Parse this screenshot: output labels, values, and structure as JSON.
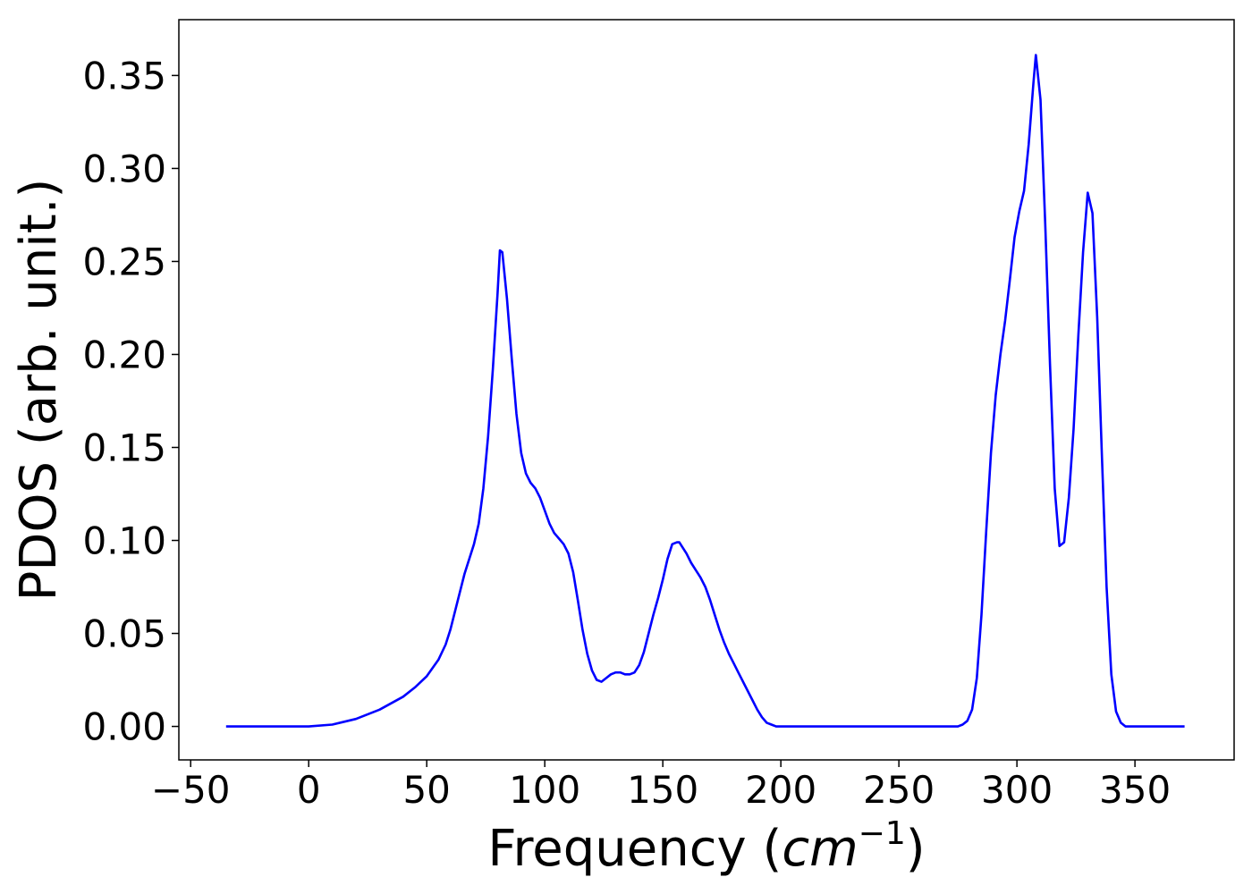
{
  "chart_data": {
    "type": "line",
    "title": "",
    "xlabel_prefix": "Frequency (",
    "xlabel_math": "cm",
    "xlabel_sup": "−1",
    "xlabel_suffix": ")",
    "ylabel": "PDOS (arb. unit.)",
    "xlim": [
      -55,
      392
    ],
    "ylim": [
      -0.018,
      0.38
    ],
    "xticks": [
      -50,
      0,
      50,
      100,
      150,
      200,
      250,
      300,
      350
    ],
    "xtick_labels": [
      "−50",
      "0",
      "50",
      "100",
      "150",
      "200",
      "250",
      "300",
      "350"
    ],
    "yticks": [
      0.0,
      0.05,
      0.1,
      0.15,
      0.2,
      0.25,
      0.3,
      0.35
    ],
    "ytick_labels": [
      "0.00",
      "0.05",
      "0.10",
      "0.15",
      "0.20",
      "0.25",
      "0.30",
      "0.35"
    ],
    "grid": false,
    "line_color": "#0000ff",
    "series": [
      {
        "x": [
          -35,
          -20,
          0,
          10,
          20,
          30,
          40,
          45,
          50,
          55,
          58,
          60,
          63,
          66,
          70,
          72,
          74,
          76,
          78,
          80,
          81,
          82,
          84,
          86,
          88,
          90,
          92,
          94,
          96,
          98,
          100,
          102,
          104,
          106,
          108,
          110,
          112,
          114,
          116,
          118,
          120,
          122,
          124,
          126,
          128,
          130,
          132,
          134,
          136,
          138,
          140,
          142,
          144,
          146,
          148,
          150,
          152,
          154,
          156,
          157,
          158,
          160,
          162,
          164,
          166,
          168,
          170,
          172,
          174,
          176,
          178,
          180,
          182,
          184,
          186,
          188,
          190,
          192,
          194,
          196,
          198,
          200,
          210,
          250,
          270,
          275,
          277,
          279,
          281,
          283,
          285,
          287,
          289,
          291,
          293,
          295,
          297,
          299,
          301,
          303,
          305,
          307,
          308,
          310,
          312,
          314,
          316,
          318,
          320,
          322,
          324,
          326,
          328,
          330,
          332,
          334,
          336,
          338,
          340,
          342,
          344,
          346,
          348,
          350,
          371
        ],
        "y": [
          0.0,
          0.0,
          0.0,
          0.001,
          0.004,
          0.009,
          0.016,
          0.021,
          0.027,
          0.036,
          0.044,
          0.052,
          0.067,
          0.082,
          0.098,
          0.109,
          0.128,
          0.156,
          0.192,
          0.233,
          0.256,
          0.255,
          0.23,
          0.198,
          0.168,
          0.147,
          0.136,
          0.131,
          0.128,
          0.123,
          0.116,
          0.109,
          0.104,
          0.101,
          0.098,
          0.093,
          0.083,
          0.068,
          0.052,
          0.039,
          0.03,
          0.025,
          0.024,
          0.026,
          0.028,
          0.029,
          0.029,
          0.028,
          0.028,
          0.029,
          0.033,
          0.04,
          0.05,
          0.06,
          0.069,
          0.079,
          0.09,
          0.098,
          0.099,
          0.099,
          0.097,
          0.093,
          0.088,
          0.084,
          0.08,
          0.075,
          0.068,
          0.06,
          0.052,
          0.045,
          0.039,
          0.034,
          0.029,
          0.024,
          0.019,
          0.014,
          0.009,
          0.005,
          0.002,
          0.001,
          0.0,
          0.0,
          0.0,
          0.0,
          0.0,
          0.0,
          0.001,
          0.003,
          0.009,
          0.026,
          0.06,
          0.105,
          0.147,
          0.178,
          0.2,
          0.218,
          0.24,
          0.263,
          0.277,
          0.288,
          0.313,
          0.346,
          0.361,
          0.337,
          0.27,
          0.195,
          0.128,
          0.097,
          0.099,
          0.123,
          0.16,
          0.21,
          0.255,
          0.287,
          0.276,
          0.22,
          0.145,
          0.075,
          0.028,
          0.008,
          0.002,
          0.0,
          0.0,
          0.0,
          0.0
        ]
      }
    ]
  }
}
